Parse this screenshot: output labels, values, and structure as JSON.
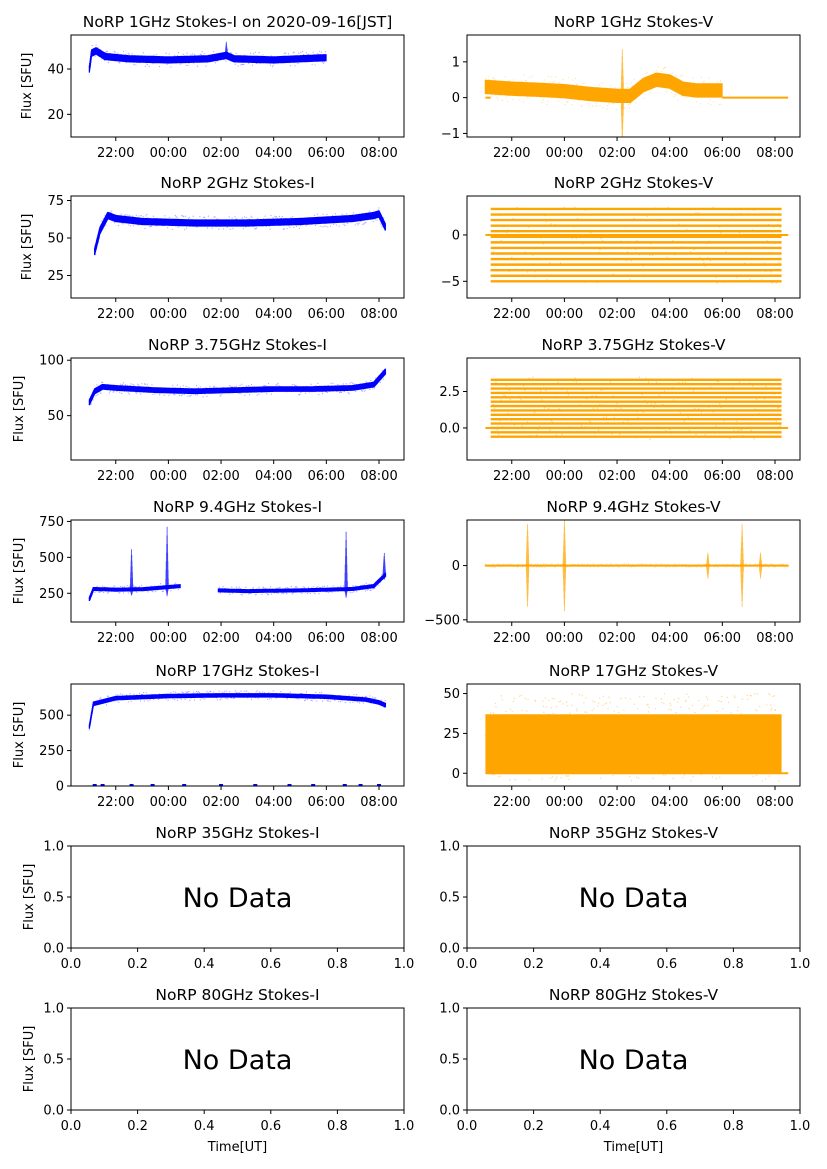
{
  "figure": {
    "date_label": "2020-09-16[JST]",
    "time_ticks": [
      "22:00",
      "00:00",
      "02:00",
      "04:00",
      "06:00",
      "08:00"
    ],
    "colors": {
      "stokes_i": "#0000ff",
      "stokes_v": "#ffa500",
      "axes": "#000000"
    }
  },
  "chart_data": [
    {
      "type": "scatter",
      "title": "NoRP 1GHz Stokes-I on 2020-09-16[JST]",
      "ylabel": "Flux [SFU]",
      "xlabel": "",
      "color": "#0000ff",
      "x_range_hours": [
        20.3,
        32.95
      ],
      "ylim": [
        10,
        55
      ],
      "yticks": [
        20,
        40
      ],
      "segments": [
        {
          "start": 21.0,
          "end": 30.0
        }
      ],
      "profile": [
        [
          21.0,
          40
        ],
        [
          21.08,
          47
        ],
        [
          21.25,
          48
        ],
        [
          21.6,
          45.5
        ],
        [
          22.5,
          44.5
        ],
        [
          24.0,
          44
        ],
        [
          25.5,
          44.5
        ],
        [
          26.2,
          46
        ],
        [
          26.5,
          44.5
        ],
        [
          28.0,
          44
        ],
        [
          29.0,
          44.5
        ],
        [
          30.0,
          45
        ]
      ],
      "noise": 1.6,
      "spikes": [
        {
          "t": 26.2,
          "h": 6
        }
      ],
      "no_data": false
    },
    {
      "type": "scatter",
      "title": "NoRP 1GHz Stokes-V",
      "ylabel": "",
      "xlabel": "",
      "color": "#ffa500",
      "x_range_hours": [
        20.3,
        32.95
      ],
      "ylim": [
        -1.1,
        1.75
      ],
      "yticks": [
        -1,
        0,
        1
      ],
      "segments": [
        {
          "start": 21.0,
          "end": 30.0
        }
      ],
      "profile": [
        [
          21.0,
          0.3
        ],
        [
          22.0,
          0.25
        ],
        [
          23.0,
          0.22
        ],
        [
          24.0,
          0.18
        ],
        [
          25.0,
          0.1
        ],
        [
          26.0,
          0.05
        ],
        [
          26.5,
          0.05
        ],
        [
          27.0,
          0.35
        ],
        [
          27.5,
          0.5
        ],
        [
          28.0,
          0.45
        ],
        [
          28.5,
          0.25
        ],
        [
          29.0,
          0.2
        ],
        [
          30.0,
          0.2
        ]
      ],
      "noise": 0.2,
      "spikes": [
        {
          "t": 26.2,
          "h": 1.3
        }
      ],
      "flat_lines": [
        {
          "y": 0,
          "start": 21.0,
          "end": 21.2
        },
        {
          "y": 0,
          "start": 30.0,
          "end": 32.5
        }
      ],
      "no_data": false
    },
    {
      "type": "scatter",
      "title": "NoRP 2GHz Stokes-I",
      "ylabel": "Flux [SFU]",
      "xlabel": "",
      "color": "#0000ff",
      "x_range_hours": [
        20.3,
        32.95
      ],
      "ylim": [
        10,
        78
      ],
      "yticks": [
        25,
        50,
        75
      ],
      "segments": [
        {
          "start": 21.2,
          "end": 32.25
        }
      ],
      "profile": [
        [
          21.2,
          41
        ],
        [
          21.4,
          55
        ],
        [
          21.7,
          65
        ],
        [
          22.0,
          63
        ],
        [
          23.0,
          61
        ],
        [
          25.0,
          60
        ],
        [
          27.0,
          60
        ],
        [
          29.0,
          61
        ],
        [
          31.0,
          63
        ],
        [
          31.8,
          65
        ],
        [
          32.0,
          66
        ],
        [
          32.25,
          57
        ]
      ],
      "noise": 2.4,
      "spikes": [],
      "no_data": false
    },
    {
      "type": "levels",
      "title": "NoRP 2GHz Stokes-V",
      "ylabel": "",
      "xlabel": "",
      "color": "#ffa500",
      "x_range_hours": [
        20.3,
        32.95
      ],
      "ylim": [
        -6.8,
        4.2
      ],
      "yticks": [
        -5,
        0
      ],
      "segments": [
        {
          "start": 21.2,
          "end": 32.25
        }
      ],
      "levels": [
        -5,
        -4.4,
        -3.8,
        -3.2,
        -2.6,
        -2.0,
        -1.4,
        -0.8,
        -0.2,
        0.4,
        1.0,
        1.6,
        2.2,
        2.8
      ],
      "flat_lines": [
        {
          "y": 0,
          "start": 21.0,
          "end": 32.5
        }
      ],
      "no_data": false
    },
    {
      "type": "scatter",
      "title": "NoRP 3.75GHz Stokes-I",
      "ylabel": "Flux [SFU]",
      "xlabel": "",
      "color": "#0000ff",
      "x_range_hours": [
        20.3,
        32.95
      ],
      "ylim": [
        10,
        102
      ],
      "yticks": [
        50,
        100
      ],
      "segments": [
        {
          "start": 21.0,
          "end": 32.25
        }
      ],
      "profile": [
        [
          21.0,
          62
        ],
        [
          21.2,
          72
        ],
        [
          21.5,
          76
        ],
        [
          22.0,
          75
        ],
        [
          23.5,
          73
        ],
        [
          25.0,
          72
        ],
        [
          26.5,
          73
        ],
        [
          28.0,
          74
        ],
        [
          29.5,
          74
        ],
        [
          31.0,
          75
        ],
        [
          31.8,
          78
        ],
        [
          32.1,
          86
        ],
        [
          32.25,
          90
        ]
      ],
      "noise": 2.6,
      "spikes": [],
      "no_data": false
    },
    {
      "type": "levels",
      "title": "NoRP 3.75GHz Stokes-V",
      "ylabel": "",
      "xlabel": "",
      "color": "#ffa500",
      "x_range_hours": [
        20.3,
        32.95
      ],
      "ylim": [
        -2.2,
        4.8
      ],
      "yticks": [
        0.0,
        2.5
      ],
      "segments": [
        {
          "start": 21.2,
          "end": 32.25
        }
      ],
      "levels": [
        -0.6,
        -0.3,
        0.0,
        0.3,
        0.6,
        0.9,
        1.2,
        1.5,
        1.8,
        2.1,
        2.4,
        2.7,
        3.0,
        3.3
      ],
      "flat_lines": [
        {
          "y": 0,
          "start": 21.0,
          "end": 32.5
        }
      ],
      "no_data": false
    },
    {
      "type": "scatter",
      "title": "NoRP 9.4GHz Stokes-I",
      "ylabel": "Flux [SFU]",
      "xlabel": "",
      "color": "#0000ff",
      "x_range_hours": [
        20.3,
        32.95
      ],
      "ylim": [
        50,
        760
      ],
      "yticks": [
        250,
        500,
        750
      ],
      "segments": [
        {
          "start": 21.0,
          "end": 24.45
        },
        {
          "start": 25.9,
          "end": 32.25
        }
      ],
      "profile": [
        [
          21.0,
          210
        ],
        [
          21.15,
          280
        ],
        [
          22.0,
          275
        ],
        [
          23.0,
          278
        ],
        [
          24.45,
          300
        ],
        [
          25.9,
          270
        ],
        [
          27.0,
          265
        ],
        [
          28.0,
          268
        ],
        [
          29.0,
          270
        ],
        [
          30.0,
          275
        ],
        [
          31.0,
          280
        ],
        [
          31.8,
          300
        ],
        [
          32.25,
          380
        ]
      ],
      "noise": 14,
      "spikes": [
        {
          "t": 22.6,
          "h": 280
        },
        {
          "t": 23.95,
          "h": 420
        },
        {
          "t": 30.75,
          "h": 400
        },
        {
          "t": 32.2,
          "h": 160
        }
      ],
      "no_data": false
    },
    {
      "type": "scatter",
      "title": "NoRP 9.4GHz Stokes-V",
      "ylabel": "",
      "xlabel": "",
      "color": "#ffa500",
      "x_range_hours": [
        20.3,
        32.95
      ],
      "ylim": [
        -520,
        420
      ],
      "yticks": [
        -500,
        0
      ],
      "segments": [
        {
          "start": 21.0,
          "end": 32.5
        }
      ],
      "profile": [
        [
          21.0,
          0
        ],
        [
          32.5,
          0
        ]
      ],
      "noise": 8,
      "spikes": [
        {
          "t": 22.6,
          "h": 380
        },
        {
          "t": 24.0,
          "h": 420
        },
        {
          "t": 29.45,
          "h": 120
        },
        {
          "t": 30.75,
          "h": 380
        },
        {
          "t": 31.45,
          "h": 120
        }
      ],
      "flat_lines": [
        {
          "y": 0,
          "start": 21.0,
          "end": 32.5
        }
      ],
      "no_data": false
    },
    {
      "type": "scatter",
      "title": "NoRP 17GHz Stokes-I",
      "ylabel": "Flux [SFU]",
      "xlabel": "",
      "color": "#0000ff",
      "x_range_hours": [
        20.3,
        32.95
      ],
      "ylim": [
        0,
        720
      ],
      "yticks": [
        0,
        250,
        500
      ],
      "segments": [
        {
          "start": 21.0,
          "end": 32.25
        }
      ],
      "profile": [
        [
          21.0,
          420
        ],
        [
          21.15,
          580
        ],
        [
          22.0,
          620
        ],
        [
          24.0,
          635
        ],
        [
          26.0,
          640
        ],
        [
          28.0,
          640
        ],
        [
          30.0,
          630
        ],
        [
          31.5,
          610
        ],
        [
          32.0,
          590
        ],
        [
          32.25,
          570
        ]
      ],
      "noise": 16,
      "spikes": [],
      "zero_marks": [
        21.2,
        21.5,
        22.6,
        23.4,
        24.6,
        26.0,
        27.3,
        28.6,
        29.5,
        30.7,
        31.3,
        32.0
      ],
      "no_data": false
    },
    {
      "type": "band",
      "title": "NoRP 17GHz Stokes-V",
      "ylabel": "",
      "xlabel": "",
      "color": "#ffa500",
      "x_range_hours": [
        20.3,
        32.95
      ],
      "ylim": [
        -8,
        56
      ],
      "yticks": [
        0,
        25,
        50
      ],
      "segments": [
        {
          "start": 21.0,
          "end": 32.25
        }
      ],
      "band": {
        "low": 0,
        "high": 37
      },
      "flat_lines": [
        {
          "y": 0,
          "start": 21.0,
          "end": 32.5
        }
      ],
      "no_data": false
    },
    {
      "type": "scatter",
      "title": "NoRP 35GHz Stokes-I",
      "ylabel": "Flux [SFU]",
      "xlabel": "",
      "xlim": [
        0,
        1
      ],
      "ylim": [
        0,
        1
      ],
      "xticks": [
        0.0,
        0.2,
        0.4,
        0.6,
        0.8,
        1.0
      ],
      "yticks": [
        0.0,
        0.5,
        1.0
      ],
      "no_data": true,
      "annotation": "No Data"
    },
    {
      "type": "scatter",
      "title": "NoRP 35GHz Stokes-V",
      "ylabel": "",
      "xlabel": "",
      "xlim": [
        0,
        1
      ],
      "ylim": [
        0,
        1
      ],
      "xticks": [
        0.0,
        0.2,
        0.4,
        0.6,
        0.8,
        1.0
      ],
      "yticks": [
        0.0,
        0.5,
        1.0
      ],
      "no_data": true,
      "annotation": "No Data"
    },
    {
      "type": "scatter",
      "title": "NoRP 80GHz Stokes-I",
      "ylabel": "Flux [SFU]",
      "xlabel": "Time[UT]",
      "xlim": [
        0,
        1
      ],
      "ylim": [
        0,
        1
      ],
      "xticks": [
        0.0,
        0.2,
        0.4,
        0.6,
        0.8,
        1.0
      ],
      "yticks": [
        0.0,
        0.5,
        1.0
      ],
      "no_data": true,
      "annotation": "No Data"
    },
    {
      "type": "scatter",
      "title": "NoRP 80GHz Stokes-V",
      "ylabel": "",
      "xlabel": "Time[UT]",
      "xlim": [
        0,
        1
      ],
      "ylim": [
        0,
        1
      ],
      "xticks": [
        0.0,
        0.2,
        0.4,
        0.6,
        0.8,
        1.0
      ],
      "yticks": [
        0.0,
        0.5,
        1.0
      ],
      "no_data": true,
      "annotation": "No Data"
    }
  ]
}
